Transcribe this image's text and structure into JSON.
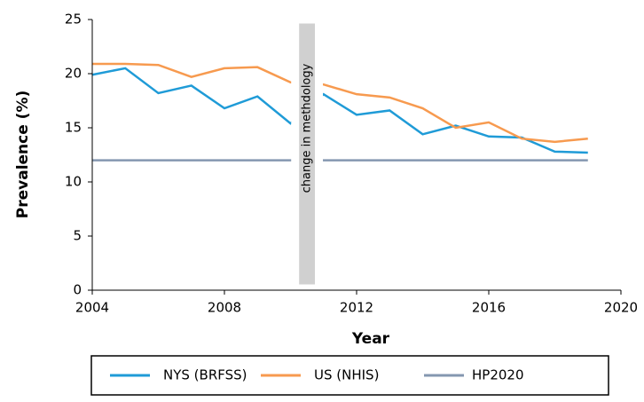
{
  "chart_data": {
    "type": "line",
    "x": [
      2004,
      2005,
      2006,
      2007,
      2008,
      2009,
      2010,
      2011,
      2012,
      2013,
      2014,
      2015,
      2016,
      2017,
      2018,
      2019
    ],
    "series": [
      {
        "name": "NYS (BRFSS)",
        "color": "#1f9bd7",
        "values": [
          19.9,
          20.5,
          18.2,
          18.9,
          16.8,
          17.9,
          15.4,
          18.1,
          16.2,
          16.6,
          14.4,
          15.2,
          14.2,
          14.1,
          12.8,
          12.7
        ]
      },
      {
        "name": "US (NHIS)",
        "color": "#f79a4f",
        "values": [
          20.9,
          20.9,
          20.8,
          19.7,
          20.5,
          20.6,
          19.2,
          19.0,
          18.1,
          17.8,
          16.8,
          15.0,
          15.5,
          14.0,
          13.7,
          14.0
        ]
      },
      {
        "name": "HP2020",
        "color": "#8497b0",
        "values": [
          12,
          12,
          12,
          12,
          12,
          12,
          12,
          12,
          12,
          12,
          12,
          12,
          12,
          12,
          12,
          12
        ]
      }
    ],
    "xlabel": "Year",
    "ylabel": "Prevalence (%)",
    "annotation": "change in methdology",
    "xlim": [
      2004,
      2020
    ],
    "xticks": [
      2004,
      2008,
      2012,
      2016,
      2020
    ],
    "ylim": [
      0,
      25
    ],
    "yticks": [
      0,
      5,
      10,
      15,
      20,
      25
    ],
    "grid": false,
    "legend": "bottom"
  }
}
